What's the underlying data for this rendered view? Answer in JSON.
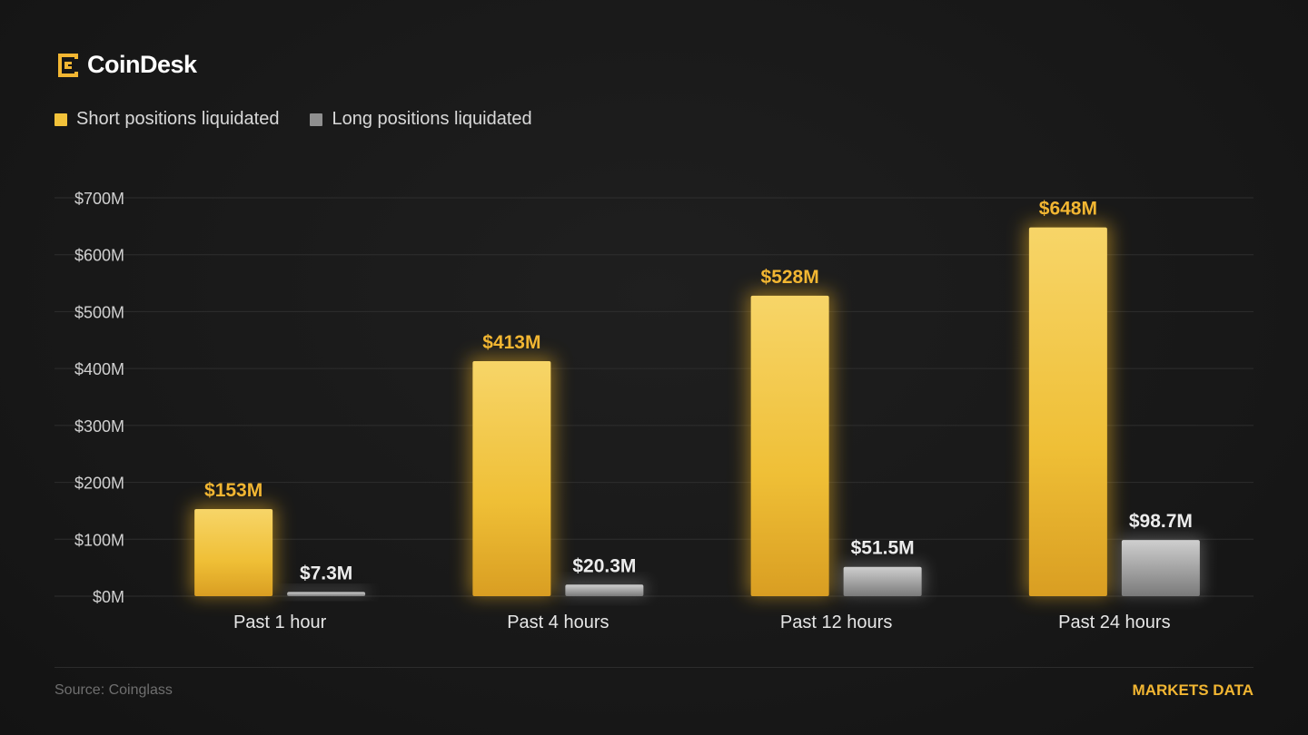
{
  "brand": {
    "name": "CoinDesk",
    "accent": "#f2b632"
  },
  "footer": {
    "source": "Source: Coinglass",
    "section": "MARKETS DATA"
  },
  "chart_data": {
    "type": "bar",
    "categories": [
      "Past 1 hour",
      "Past 4 hours",
      "Past 12 hours",
      "Past 24 hours"
    ],
    "series": [
      {
        "name": "Short positions liquidated",
        "color": "#f2c23a",
        "values": [
          153,
          413,
          528,
          648
        ],
        "labels": [
          "$153M",
          "$413M",
          "$528M",
          "$648M"
        ]
      },
      {
        "name": "Long positions liquidated",
        "color": "#a6a6a6",
        "values": [
          7.3,
          20.3,
          51.5,
          98.7
        ],
        "labels": [
          "$7.3M",
          "$20.3M",
          "$51.5M",
          "$98.7M"
        ]
      }
    ],
    "yticks": [
      0,
      100,
      200,
      300,
      400,
      500,
      600,
      700
    ],
    "ytick_labels": [
      "$0M",
      "$100M",
      "$200M",
      "$300M",
      "$400M",
      "$500M",
      "$600M",
      "$700M"
    ],
    "ylim": [
      0,
      700
    ],
    "grid": true,
    "legend_position": "top-left"
  }
}
